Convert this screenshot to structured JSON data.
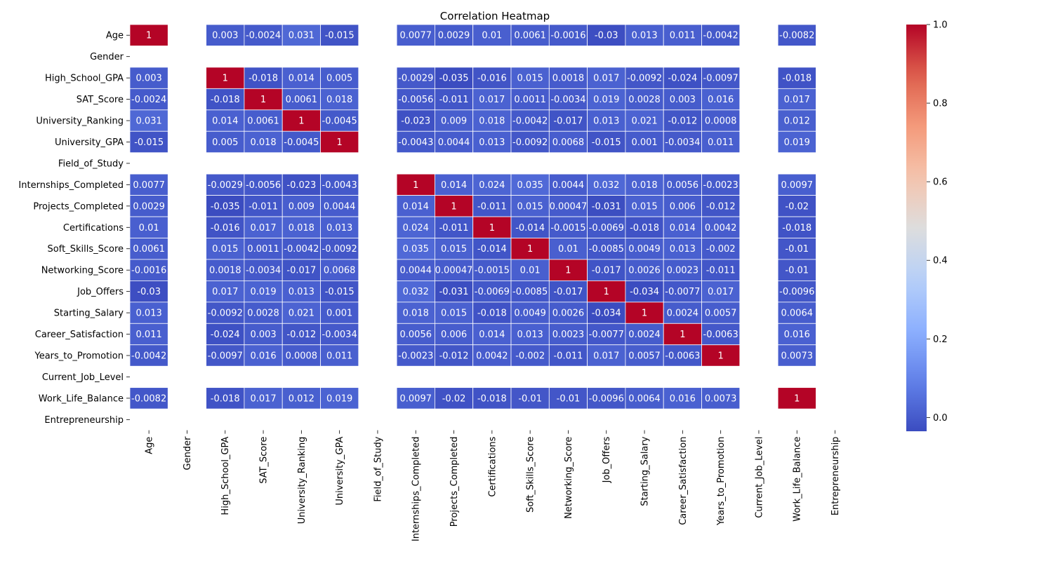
{
  "chart_data": {
    "type": "heatmap",
    "title": "Correlation Heatmap",
    "xlabel": "",
    "ylabel": "",
    "colormap": "coolwarm",
    "colorbar": {
      "min": -0.035,
      "max": 1.0,
      "ticks": [
        "0.0",
        "0.2",
        "0.4",
        "0.6",
        "0.8",
        "1.0"
      ]
    },
    "labels": [
      "Age",
      "Gender",
      "High_School_GPA",
      "SAT_Score",
      "University_Ranking",
      "University_GPA",
      "Field_of_Study",
      "Internships_Completed",
      "Projects_Completed",
      "Certifications",
      "Soft_Skills_Score",
      "Networking_Score",
      "Job_Offers",
      "Starting_Salary",
      "Career_Satisfaction",
      "Years_to_Promotion",
      "Current_Job_Level",
      "Work_Life_Balance",
      "Entrepreneurship"
    ],
    "values": [
      [
        1,
        null,
        0.003,
        -0.0024,
        0.031,
        -0.015,
        null,
        0.0077,
        0.0029,
        0.01,
        0.0061,
        -0.0016,
        -0.03,
        0.013,
        0.011,
        -0.0042,
        null,
        -0.0082,
        null
      ],
      [
        null,
        null,
        null,
        null,
        null,
        null,
        null,
        null,
        null,
        null,
        null,
        null,
        null,
        null,
        null,
        null,
        null,
        null,
        null
      ],
      [
        0.003,
        null,
        1,
        -0.018,
        0.014,
        0.005,
        null,
        -0.0029,
        -0.035,
        -0.016,
        0.015,
        0.0018,
        0.017,
        -0.0092,
        -0.024,
        -0.0097,
        null,
        -0.018,
        null
      ],
      [
        -0.0024,
        null,
        -0.018,
        1,
        0.0061,
        0.018,
        null,
        -0.0056,
        -0.011,
        0.017,
        0.0011,
        -0.0034,
        0.019,
        0.0028,
        0.003,
        0.016,
        null,
        0.017,
        null
      ],
      [
        0.031,
        null,
        0.014,
        0.0061,
        1,
        -0.0045,
        null,
        -0.023,
        0.009,
        0.018,
        -0.0042,
        -0.017,
        0.013,
        0.021,
        -0.012,
        0.0008,
        null,
        0.012,
        null
      ],
      [
        -0.015,
        null,
        0.005,
        0.018,
        -0.0045,
        1,
        null,
        -0.0043,
        0.0044,
        0.013,
        -0.0092,
        0.0068,
        -0.015,
        0.001,
        -0.0034,
        0.011,
        null,
        0.019,
        null
      ],
      [
        null,
        null,
        null,
        null,
        null,
        null,
        null,
        null,
        null,
        null,
        null,
        null,
        null,
        null,
        null,
        null,
        null,
        null,
        null
      ],
      [
        0.0077,
        null,
        -0.0029,
        -0.0056,
        -0.023,
        -0.0043,
        null,
        1,
        0.014,
        0.024,
        0.035,
        0.0044,
        0.032,
        0.018,
        0.0056,
        -0.0023,
        null,
        0.0097,
        null
      ],
      [
        0.0029,
        null,
        -0.035,
        -0.011,
        0.009,
        0.0044,
        null,
        0.014,
        1,
        -0.011,
        0.015,
        0.00047,
        -0.031,
        0.015,
        0.006,
        -0.012,
        null,
        -0.02,
        null
      ],
      [
        0.01,
        null,
        -0.016,
        0.017,
        0.018,
        0.013,
        null,
        0.024,
        -0.011,
        1,
        -0.014,
        -0.0015,
        -0.0069,
        -0.018,
        0.014,
        0.0042,
        null,
        -0.018,
        null
      ],
      [
        0.0061,
        null,
        0.015,
        0.0011,
        -0.0042,
        -0.0092,
        null,
        0.035,
        0.015,
        -0.014,
        1,
        0.01,
        -0.0085,
        0.0049,
        0.013,
        -0.002,
        null,
        -0.01,
        null
      ],
      [
        -0.0016,
        null,
        0.0018,
        -0.0034,
        -0.017,
        0.0068,
        null,
        0.0044,
        0.00047,
        -0.0015,
        0.01,
        1,
        -0.017,
        0.0026,
        0.0023,
        -0.011,
        null,
        -0.01,
        null
      ],
      [
        -0.03,
        null,
        0.017,
        0.019,
        0.013,
        -0.015,
        null,
        0.032,
        -0.031,
        -0.0069,
        -0.0085,
        -0.017,
        1,
        -0.034,
        -0.0077,
        0.017,
        null,
        -0.0096,
        null
      ],
      [
        0.013,
        null,
        -0.0092,
        0.0028,
        0.021,
        0.001,
        null,
        0.018,
        0.015,
        -0.018,
        0.0049,
        0.0026,
        -0.034,
        1,
        0.0024,
        0.0057,
        null,
        0.0064,
        null
      ],
      [
        0.011,
        null,
        -0.024,
        0.003,
        -0.012,
        -0.0034,
        null,
        0.0056,
        0.006,
        0.014,
        0.013,
        0.0023,
        -0.0077,
        0.0024,
        1,
        -0.0063,
        null,
        0.016,
        null
      ],
      [
        -0.0042,
        null,
        -0.0097,
        0.016,
        0.0008,
        0.011,
        null,
        -0.0023,
        -0.012,
        0.0042,
        -0.002,
        -0.011,
        0.017,
        0.0057,
        -0.0063,
        1,
        null,
        0.0073,
        null
      ],
      [
        null,
        null,
        null,
        null,
        null,
        null,
        null,
        null,
        null,
        null,
        null,
        null,
        null,
        null,
        null,
        null,
        null,
        null,
        null
      ],
      [
        -0.0082,
        null,
        -0.018,
        0.017,
        0.012,
        0.019,
        null,
        0.0097,
        -0.02,
        -0.018,
        -0.01,
        -0.01,
        -0.0096,
        0.0064,
        0.016,
        0.0073,
        null,
        1,
        null
      ],
      [
        null,
        null,
        null,
        null,
        null,
        null,
        null,
        null,
        null,
        null,
        null,
        null,
        null,
        null,
        null,
        null,
        null,
        null,
        null
      ]
    ]
  }
}
